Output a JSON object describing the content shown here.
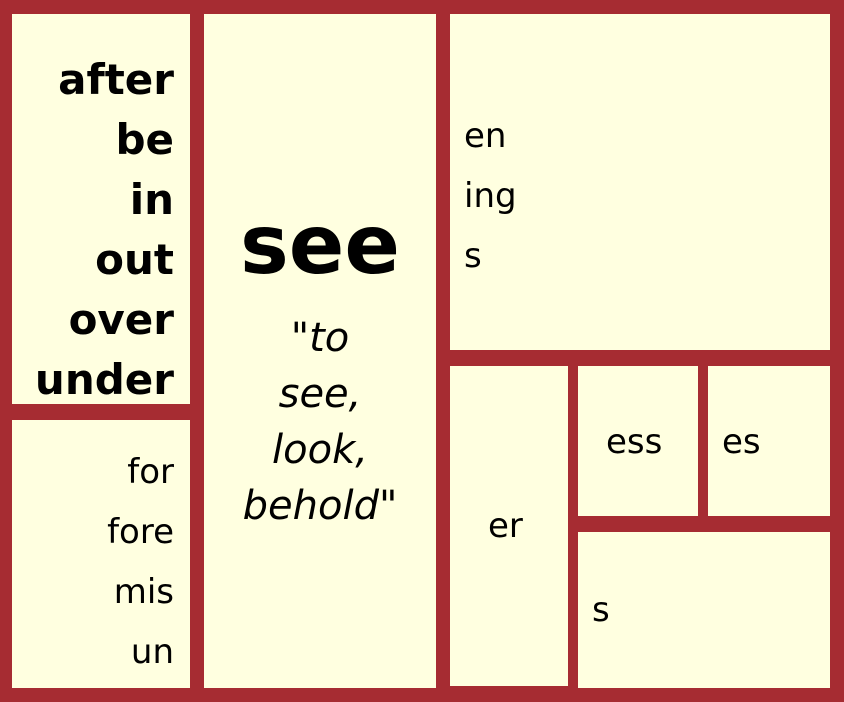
{
  "prefixes_bold": [
    "after",
    "be",
    "in",
    "out",
    "over",
    "under"
  ],
  "prefixes_plain": [
    "for",
    "fore",
    "mis",
    "un"
  ],
  "root": {
    "word": "see",
    "gloss": [
      "\"to",
      "see,",
      "look,",
      "behold\""
    ]
  },
  "suffixes_top": [
    "en",
    "ing",
    "s"
  ],
  "er_box": "er",
  "ess_box": "ess",
  "es_box": "es",
  "s_box": "s",
  "colors": {
    "border": "#a62c32",
    "cell": "#ffffe0"
  }
}
